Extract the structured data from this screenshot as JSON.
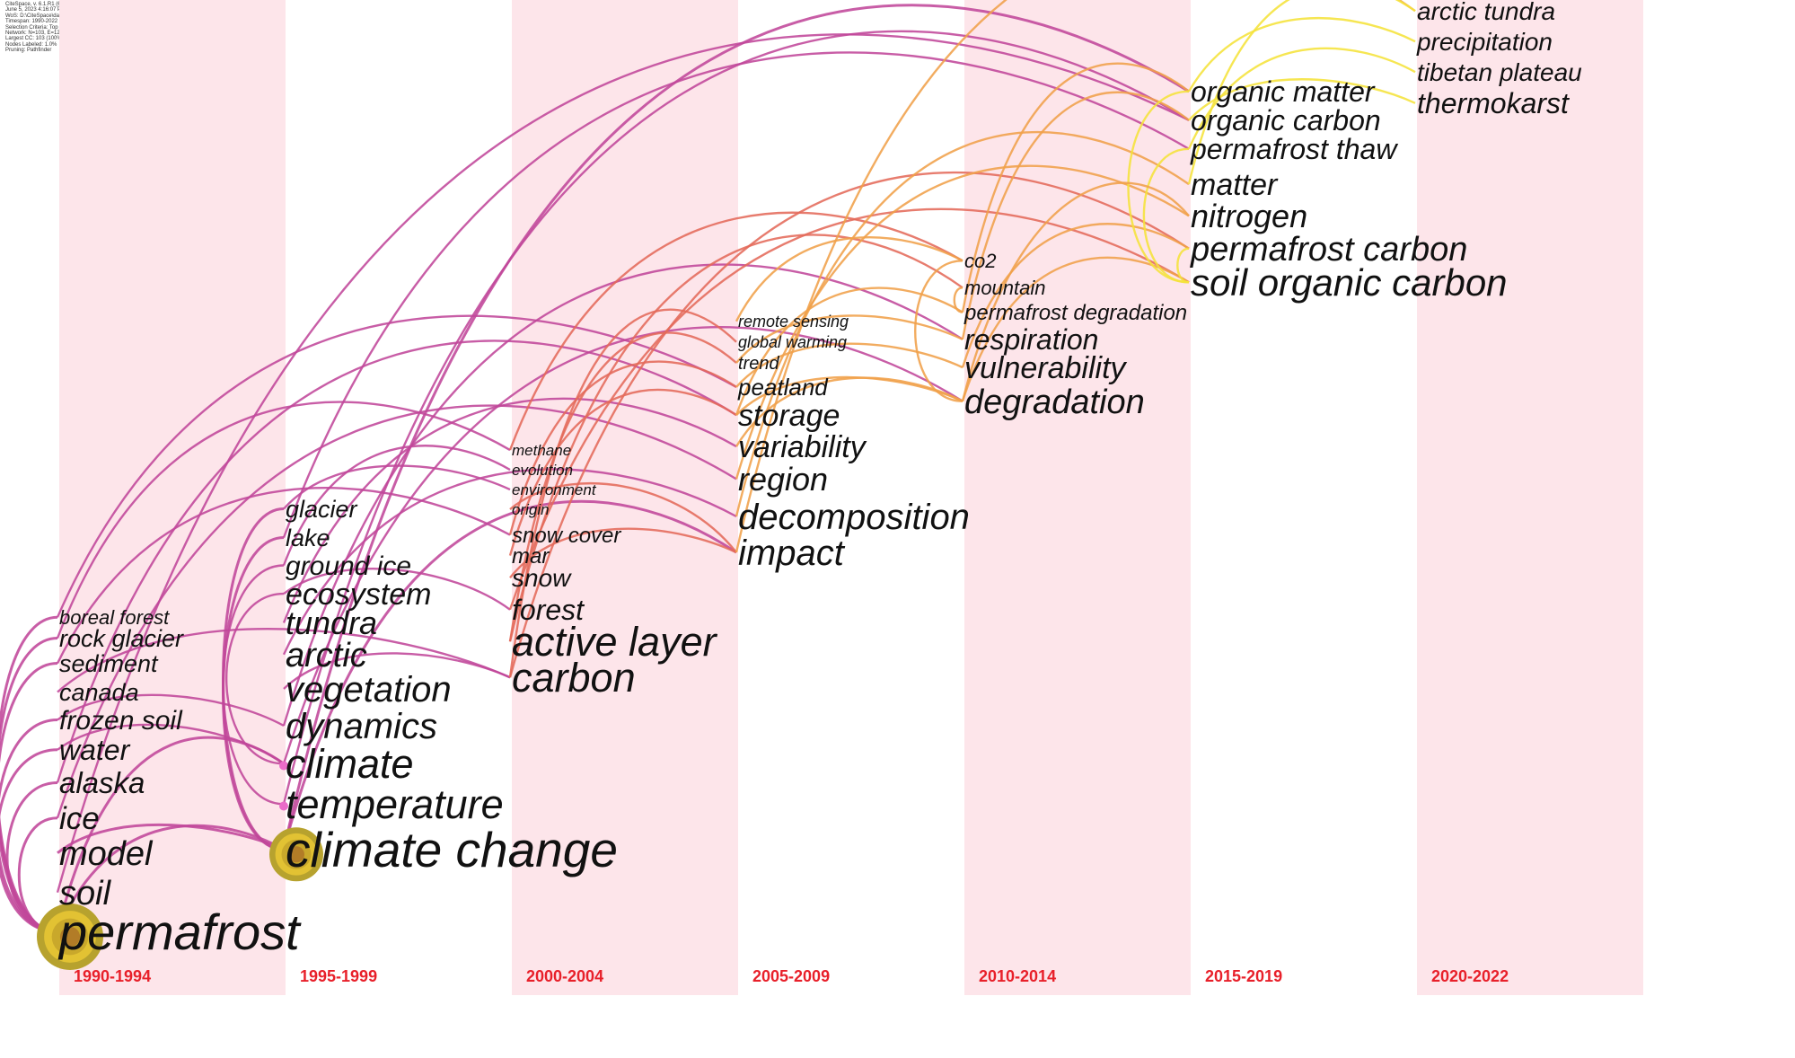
{
  "header_info": [
    "CiteSpace, v. 6.1.R1 (64-bit)",
    "June 5, 2023 4:16:07 PM CST",
    "WoS: D:\\CiteSpace\\data",
    "Timespan: 1990-2022 (Slice Length=5)",
    "Selection Criteria: Top 30 per slice, LRF=3.0, L/N=10, LBY=8, e=2.0",
    "Network: N=103, E=126 (Density=0.024)",
    "Largest CC: 103 (100%)",
    "Nodes Labeled: 1.0%",
    "Pruning: Pathfinder"
  ],
  "periods": [
    "1990-1994",
    "1995-1999",
    "2000-2004",
    "2005-2009",
    "2010-2014",
    "2015-2019",
    "2020-2022"
  ],
  "colors": {
    "band": "#fde5ea",
    "period_label": "#e8202a",
    "early_link": "#c0479a",
    "mid_link": "#e46a5a",
    "orange_link": "#f0a04a",
    "late_link": "#f5e23a",
    "node_outer": "#b7a22e",
    "node_inner": "#e2c233"
  },
  "slices": [
    {
      "period": "1990-1994",
      "keywords": [
        "boreal forest",
        "rock glacier",
        "sediment",
        "canada",
        "frozen soil",
        "water",
        "alaska",
        "ice",
        "model",
        "soil",
        "permafrost"
      ]
    },
    {
      "period": "1995-1999",
      "keywords": [
        "glacier",
        "lake",
        "ground ice",
        "ecosystem",
        "tundra",
        "arctic",
        "vegetation",
        "dynamics",
        "climate",
        "temperature",
        "climate change"
      ]
    },
    {
      "period": "2000-2004",
      "keywords": [
        "methane",
        "evolution",
        "environment",
        "origin",
        "snow cover",
        "mar",
        "snow",
        "forest",
        "active layer",
        "carbon"
      ]
    },
    {
      "period": "2005-2009",
      "keywords": [
        "remote sensing",
        "global warming",
        "trend",
        "peatland",
        "storage",
        "variability",
        "region",
        "decomposition",
        "impact"
      ]
    },
    {
      "period": "2010-2014",
      "keywords": [
        "co2",
        "mountain",
        "permafrost degradation",
        "respiration",
        "vulnerability",
        "degradation"
      ]
    },
    {
      "period": "2015-2019",
      "keywords": [
        "organic matter",
        "organic carbon",
        "permafrost thaw",
        "matter",
        "nitrogen",
        "permafrost carbon",
        "soil organic carbon"
      ]
    },
    {
      "period": "2020-2022",
      "keywords": [
        "arctic tundra",
        "precipitation",
        "tibetan plateau",
        "thermokarst"
      ]
    }
  ],
  "links": [
    [
      "permafrost",
      "climate change"
    ],
    [
      "permafrost",
      "boreal forest"
    ],
    [
      "permafrost",
      "rock glacier"
    ],
    [
      "permafrost",
      "sediment"
    ],
    [
      "permafrost",
      "water"
    ],
    [
      "permafrost",
      "alaska"
    ],
    [
      "permafrost",
      "ice"
    ],
    [
      "permafrost",
      "climate"
    ],
    [
      "permafrost",
      "frozen soil"
    ],
    [
      "soil",
      "organic carbon"
    ],
    [
      "model",
      "climate change"
    ],
    [
      "canada",
      "carbon"
    ],
    [
      "boreal forest",
      "peatland"
    ],
    [
      "rock glacier",
      "methane"
    ],
    [
      "sediment",
      "snow cover"
    ],
    [
      "frozen soil",
      "dynamics"
    ],
    [
      "water",
      "climate"
    ],
    [
      "alaska",
      "storage"
    ],
    [
      "ice",
      "region"
    ],
    [
      "climate change",
      "glacier"
    ],
    [
      "climate change",
      "lake"
    ],
    [
      "climate change",
      "impact"
    ],
    [
      "climate change",
      "organic matter"
    ],
    [
      "temperature",
      "ground ice"
    ],
    [
      "climate",
      "ecosystem"
    ],
    [
      "climate",
      "degradation"
    ],
    [
      "tundra",
      "variability"
    ],
    [
      "arctic",
      "decomposition"
    ],
    [
      "vegetation",
      "carbon"
    ],
    [
      "ecosystem",
      "forest"
    ],
    [
      "glacier",
      "environment"
    ],
    [
      "lake",
      "permafrost thaw"
    ],
    [
      "ground ice",
      "evolution"
    ],
    [
      "dynamics",
      "respiration"
    ],
    [
      "temperature",
      "organic carbon"
    ],
    [
      "carbon",
      "global warming"
    ],
    [
      "carbon",
      "permafrost carbon"
    ],
    [
      "active layer",
      "trend"
    ],
    [
      "active layer",
      "mountain"
    ],
    [
      "snow cover",
      "peatland"
    ],
    [
      "methane",
      "co2"
    ],
    [
      "origin",
      "impact"
    ],
    [
      "mar",
      "storage"
    ],
    [
      "snow",
      "impact"
    ],
    [
      "forest",
      "soil organic carbon"
    ],
    [
      "storage",
      "degradation"
    ],
    [
      "storage",
      "permafrost degradation"
    ],
    [
      "peatland",
      "vulnerability"
    ],
    [
      "region",
      "nitrogen"
    ],
    [
      "decomposition",
      "matter"
    ],
    [
      "variability",
      "degradation"
    ],
    [
      "impact",
      "arctic tundra"
    ],
    [
      "remote sensing",
      "co2"
    ],
    [
      "trend",
      "respiration"
    ],
    [
      "degradation",
      "soil organic carbon"
    ],
    [
      "vulnerability",
      "permafrost carbon"
    ],
    [
      "respiration",
      "organic carbon"
    ],
    [
      "permafrost degradation",
      "organic matter"
    ],
    [
      "mountain",
      "permafrost degradation"
    ],
    [
      "co2",
      "degradation"
    ],
    [
      "organic matter",
      "precipitation"
    ],
    [
      "organic carbon",
      "thermokarst"
    ],
    [
      "permafrost thaw",
      "tibetan plateau"
    ],
    [
      "matter",
      "arctic tundra"
    ],
    [
      "permafrost carbon",
      "soil organic carbon"
    ],
    [
      "organic matter",
      "soil organic carbon"
    ],
    [
      "permafrost thaw",
      "soil organic carbon"
    ],
    [
      "nitrogen",
      "degradation"
    ]
  ],
  "hubs": [
    "permafrost",
    "climate change"
  ]
}
